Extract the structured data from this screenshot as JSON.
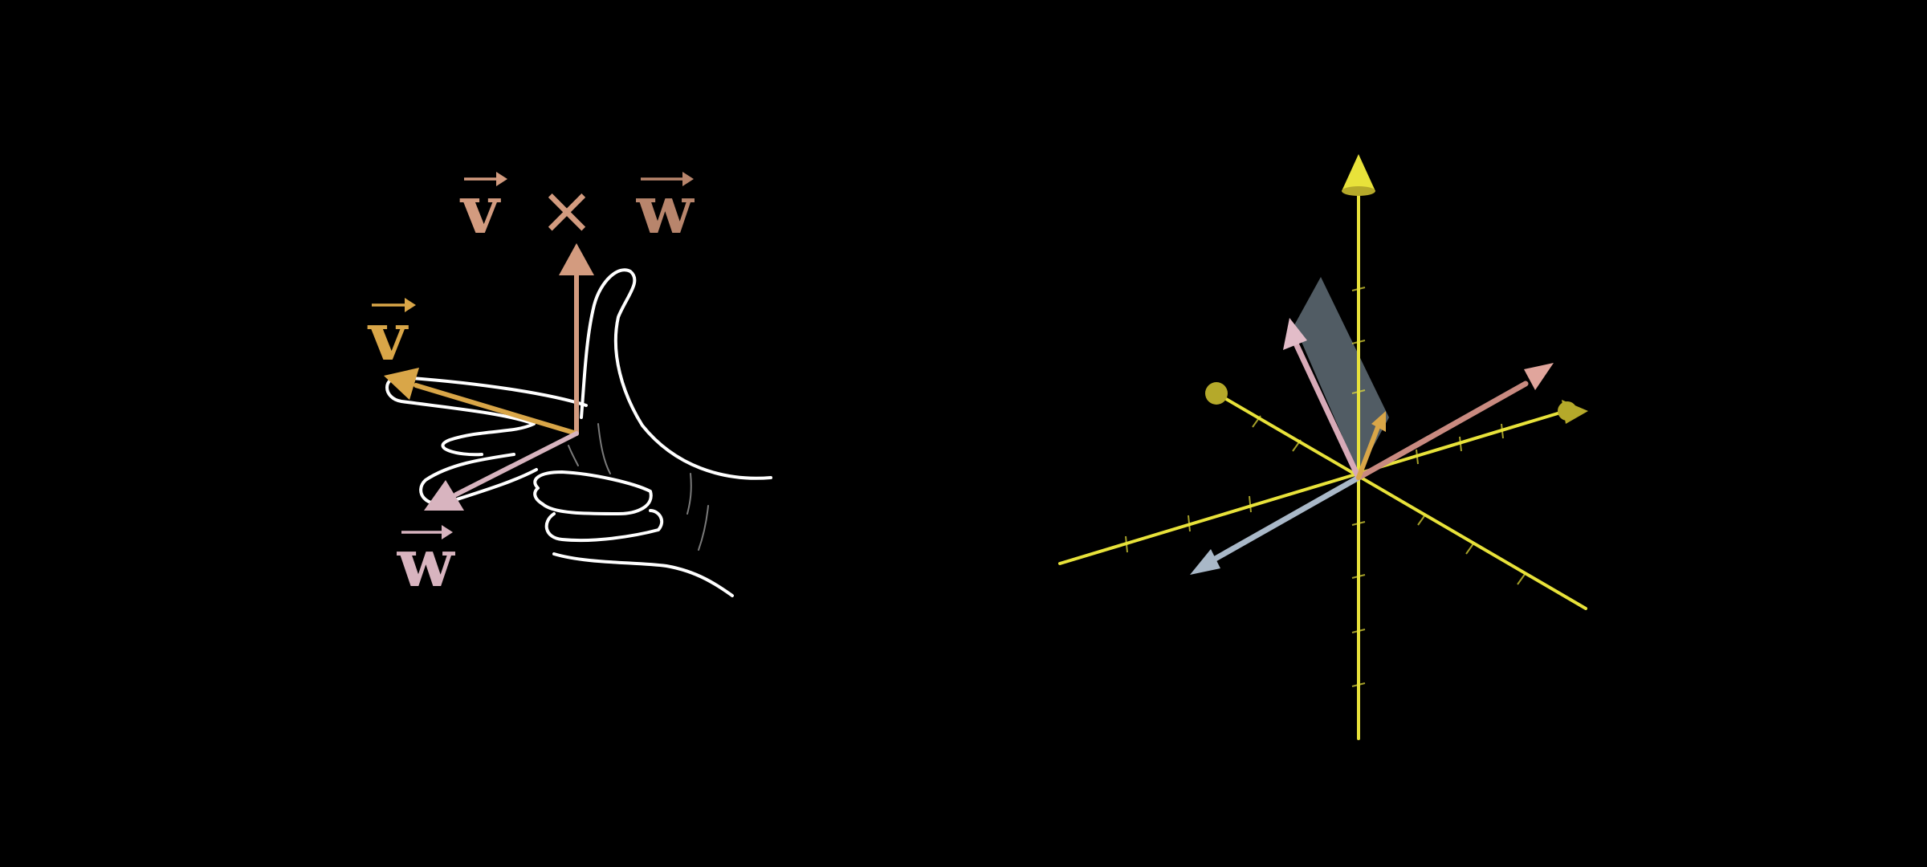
{
  "colors": {
    "background": "#000000",
    "v": "#d9a648",
    "w": "#d8b4bf",
    "cross": "#d39b7f",
    "cross_label_w": "#b8856c",
    "hand": "#ffffff",
    "axis": "#e8e23a",
    "axis_tip": "#b5a92a",
    "vec3d_pink": "#d8aab8",
    "vec3d_salmon": "#c98a80",
    "vec3d_blue": "#a9b8c8",
    "vec3d_orange": "#d9a648",
    "parallelogram": "#6c7b86"
  },
  "left_panel": {
    "cross_label": {
      "v": "v",
      "times": "×",
      "w": "w"
    },
    "v_label": "v",
    "w_label": "w"
  },
  "right_panel": {
    "icons": [
      "z-axis-arrow-icon",
      "x-axis-tip-icon",
      "y-axis-tip-icon"
    ]
  }
}
